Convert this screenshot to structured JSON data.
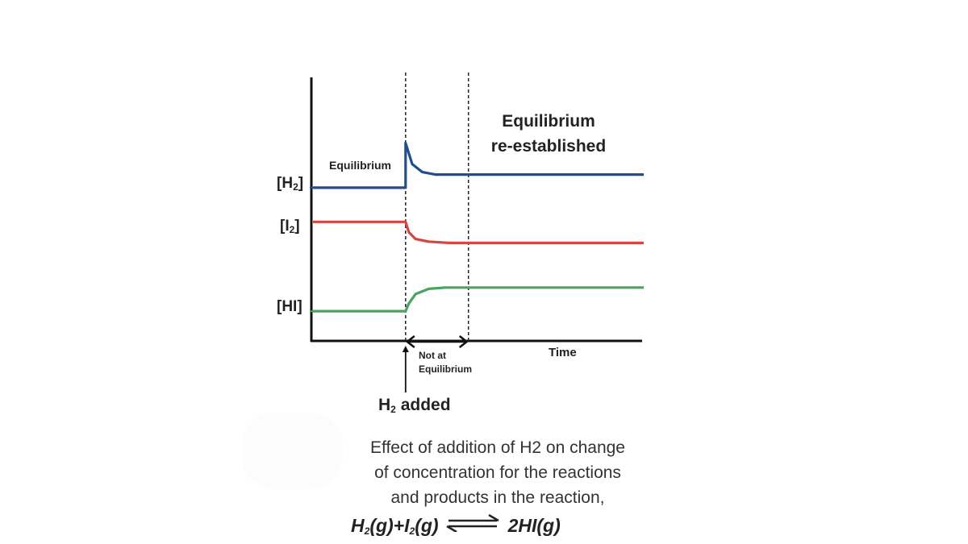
{
  "chart_data": {
    "type": "line",
    "title": "",
    "xlabel": "Time",
    "ylabel": "",
    "grid": false,
    "x_unit": "arbitrary time",
    "xlim": [
      0,
      100
    ],
    "ylim": [
      0,
      100
    ],
    "event_x": 28,
    "equilibrium_x": 47,
    "y_axis_labels": [
      {
        "key": "h2",
        "text": "[H",
        "sub": "2",
        "close": "]"
      },
      {
        "key": "i2",
        "text": "[I",
        "sub": "2",
        "close": "]"
      },
      {
        "key": "hi",
        "text": "[HI]",
        "sub": "",
        "close": ""
      }
    ],
    "series": [
      {
        "key": "h2",
        "color": "#1f4e8c",
        "points": [
          [
            0,
            58
          ],
          [
            28,
            58
          ],
          [
            28,
            75
          ],
          [
            30,
            67
          ],
          [
            33,
            64
          ],
          [
            37,
            63
          ],
          [
            47,
            63
          ],
          [
            100,
            63
          ]
        ]
      },
      {
        "key": "i2",
        "color": "#d64541",
        "points": [
          [
            0,
            45
          ],
          [
            28,
            45
          ],
          [
            29,
            41
          ],
          [
            31,
            38.5
          ],
          [
            35,
            37.5
          ],
          [
            41,
            37
          ],
          [
            100,
            37
          ]
        ]
      },
      {
        "key": "hi",
        "color": "#4aa35e",
        "points": [
          [
            0,
            11
          ],
          [
            28,
            11
          ],
          [
            29,
            14
          ],
          [
            31,
            17.5
          ],
          [
            35,
            19.5
          ],
          [
            40,
            20
          ],
          [
            100,
            20
          ]
        ]
      }
    ],
    "annotations": {
      "equilibrium": "Equilibrium",
      "reestablished_1": "Equilibrium",
      "reestablished_2": "re-established",
      "not_at_1": "Not at",
      "not_at_2": "Equilibrium",
      "h2_added_pre": "H",
      "h2_added_sub": "2",
      "h2_added_post": " added"
    }
  },
  "caption": {
    "line1": "Effect of addition of H2 on change",
    "line2": "of concentration for the reactions",
    "line3": "and products in the reaction,"
  },
  "reaction": {
    "h": "H",
    "h_sub": "2",
    "g1": "(g)+I",
    "i_sub": "2",
    "g2": "(g)",
    "product": "2HI(g)"
  }
}
